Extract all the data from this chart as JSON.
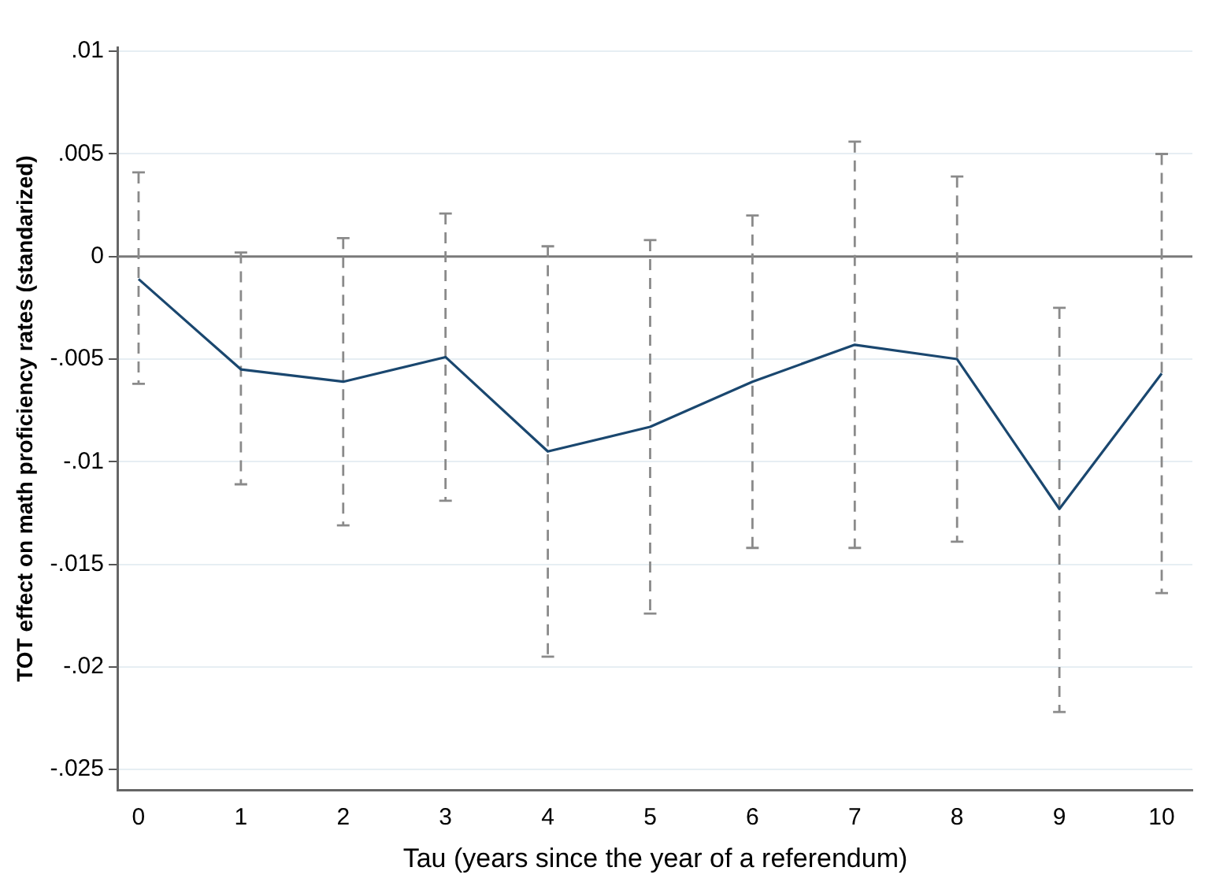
{
  "chart_data": {
    "type": "line",
    "xlabel": "Tau (years since the year of a referendum)",
    "ylabel": "TOT effect on math proficiency rates (standarized)",
    "x": [
      0,
      1,
      2,
      3,
      4,
      5,
      6,
      7,
      8,
      9,
      10
    ],
    "series": [
      {
        "color": "#1a476f",
        "values": [
          -0.0011,
          -0.0055,
          -0.0061,
          -0.0049,
          -0.0095,
          -0.0083,
          -0.0061,
          -0.0043,
          -0.005,
          -0.0123,
          -0.0057
        ],
        "errors": [
          [
            -0.0062,
            0.0041
          ],
          [
            -0.0111,
            0.0002
          ],
          [
            -0.0131,
            0.0009
          ],
          [
            -0.0119,
            0.0021
          ],
          [
            -0.0195,
            0.0005
          ],
          [
            -0.0174,
            0.0008
          ],
          [
            -0.0142,
            0.002
          ],
          [
            -0.0142,
            0.0056
          ],
          [
            -0.0139,
            0.0039
          ],
          [
            -0.0222,
            -0.0025
          ],
          [
            -0.0164,
            0.005
          ]
        ]
      }
    ],
    "xlim": [
      -0.2,
      10.3
    ],
    "xticks": [
      0,
      1,
      2,
      3,
      4,
      5,
      6,
      7,
      8,
      9,
      10
    ],
    "ylim": [
      -0.026,
      0.0102
    ],
    "yticks": [
      {
        "value": -0.025,
        "label": "-.025"
      },
      {
        "value": -0.02,
        "label": "-.02"
      },
      {
        "value": -0.015,
        "label": "-.015"
      },
      {
        "value": -0.01,
        "label": "-.01"
      },
      {
        "value": -0.005,
        "label": "-.005"
      },
      {
        "value": 0,
        "label": "0"
      },
      {
        "value": 0.005,
        "label": ".005"
      },
      {
        "value": 0.01,
        "label": ".01"
      }
    ],
    "ref_lines": [
      {
        "axis": "y",
        "value": 0,
        "color": "#7a7a7a"
      }
    ],
    "grid": "y",
    "marker": "none",
    "line_style": "solid",
    "legend": false
  }
}
